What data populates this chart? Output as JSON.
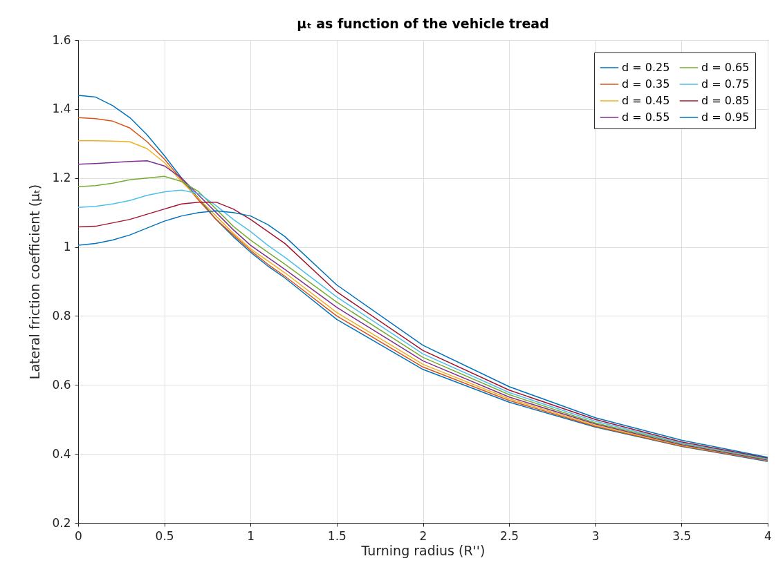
{
  "chart_data": {
    "type": "line",
    "title": "μₜ as function of the vehicle tread",
    "xlabel": "Turning radius (R'')",
    "ylabel": "Lateral friction coefficient (μₜ)",
    "x": [
      0,
      0.1,
      0.2,
      0.3,
      0.4,
      0.5,
      0.6,
      0.7,
      0.8,
      0.9,
      1.0,
      1.1,
      1.2,
      1.5,
      2,
      2.5,
      3,
      3.5,
      4
    ],
    "xlim": [
      0,
      4
    ],
    "xticks": [
      0,
      0.5,
      1,
      1.5,
      2,
      2.5,
      3,
      3.5,
      4
    ],
    "ylim": [
      0.2,
      1.6
    ],
    "yticks": [
      0.2,
      0.4,
      0.6,
      0.8,
      1,
      1.2,
      1.4,
      1.6
    ],
    "grid": true,
    "legend": "top right",
    "marker": "none",
    "line_style": "solid",
    "series": [
      {
        "name": "d = 0.25",
        "color": "#0072bd",
        "values": [
          1.44,
          1.435,
          1.41,
          1.375,
          1.325,
          1.265,
          1.2,
          1.14,
          1.08,
          1.03,
          0.985,
          0.945,
          0.91,
          0.79,
          0.645,
          0.55,
          0.478,
          0.422,
          0.378
        ]
      },
      {
        "name": "d = 0.35",
        "color": "#d95319",
        "values": [
          1.375,
          1.372,
          1.365,
          1.345,
          1.305,
          1.255,
          1.195,
          1.135,
          1.08,
          1.035,
          0.99,
          0.95,
          0.915,
          0.8,
          0.652,
          0.555,
          0.48,
          0.423,
          0.38
        ]
      },
      {
        "name": "d = 0.45",
        "color": "#edb120",
        "values": [
          1.308,
          1.308,
          1.307,
          1.305,
          1.285,
          1.245,
          1.19,
          1.14,
          1.09,
          1.04,
          0.995,
          0.96,
          0.925,
          0.81,
          0.66,
          0.56,
          0.483,
          0.425,
          0.381
        ]
      },
      {
        "name": "d = 0.55",
        "color": "#7e2f8e",
        "values": [
          1.24,
          1.242,
          1.245,
          1.248,
          1.25,
          1.235,
          1.2,
          1.15,
          1.1,
          1.05,
          1.005,
          0.97,
          0.935,
          0.825,
          0.67,
          0.565,
          0.487,
          0.427,
          0.382
        ]
      },
      {
        "name": "d = 0.65",
        "color": "#77ac30",
        "values": [
          1.175,
          1.178,
          1.185,
          1.195,
          1.2,
          1.205,
          1.19,
          1.16,
          1.11,
          1.06,
          1.02,
          0.985,
          0.95,
          0.84,
          0.68,
          0.572,
          0.49,
          0.43,
          0.384
        ]
      },
      {
        "name": "d = 0.75",
        "color": "#4dbeee",
        "values": [
          1.115,
          1.118,
          1.125,
          1.135,
          1.15,
          1.16,
          1.165,
          1.155,
          1.12,
          1.08,
          1.045,
          1.005,
          0.97,
          0.855,
          0.69,
          0.578,
          0.495,
          0.432,
          0.386
        ]
      },
      {
        "name": "d = 0.85",
        "color": "#a2142f",
        "values": [
          1.058,
          1.06,
          1.07,
          1.08,
          1.095,
          1.11,
          1.125,
          1.13,
          1.13,
          1.11,
          1.08,
          1.045,
          1.01,
          0.87,
          0.7,
          0.585,
          0.5,
          0.435,
          0.388
        ]
      },
      {
        "name": "d = 0.95",
        "color": "#0072bd",
        "values": [
          1.005,
          1.01,
          1.02,
          1.035,
          1.055,
          1.075,
          1.09,
          1.1,
          1.105,
          1.1,
          1.09,
          1.065,
          1.03,
          0.89,
          0.715,
          0.595,
          0.505,
          0.44,
          0.39
        ]
      }
    ]
  }
}
